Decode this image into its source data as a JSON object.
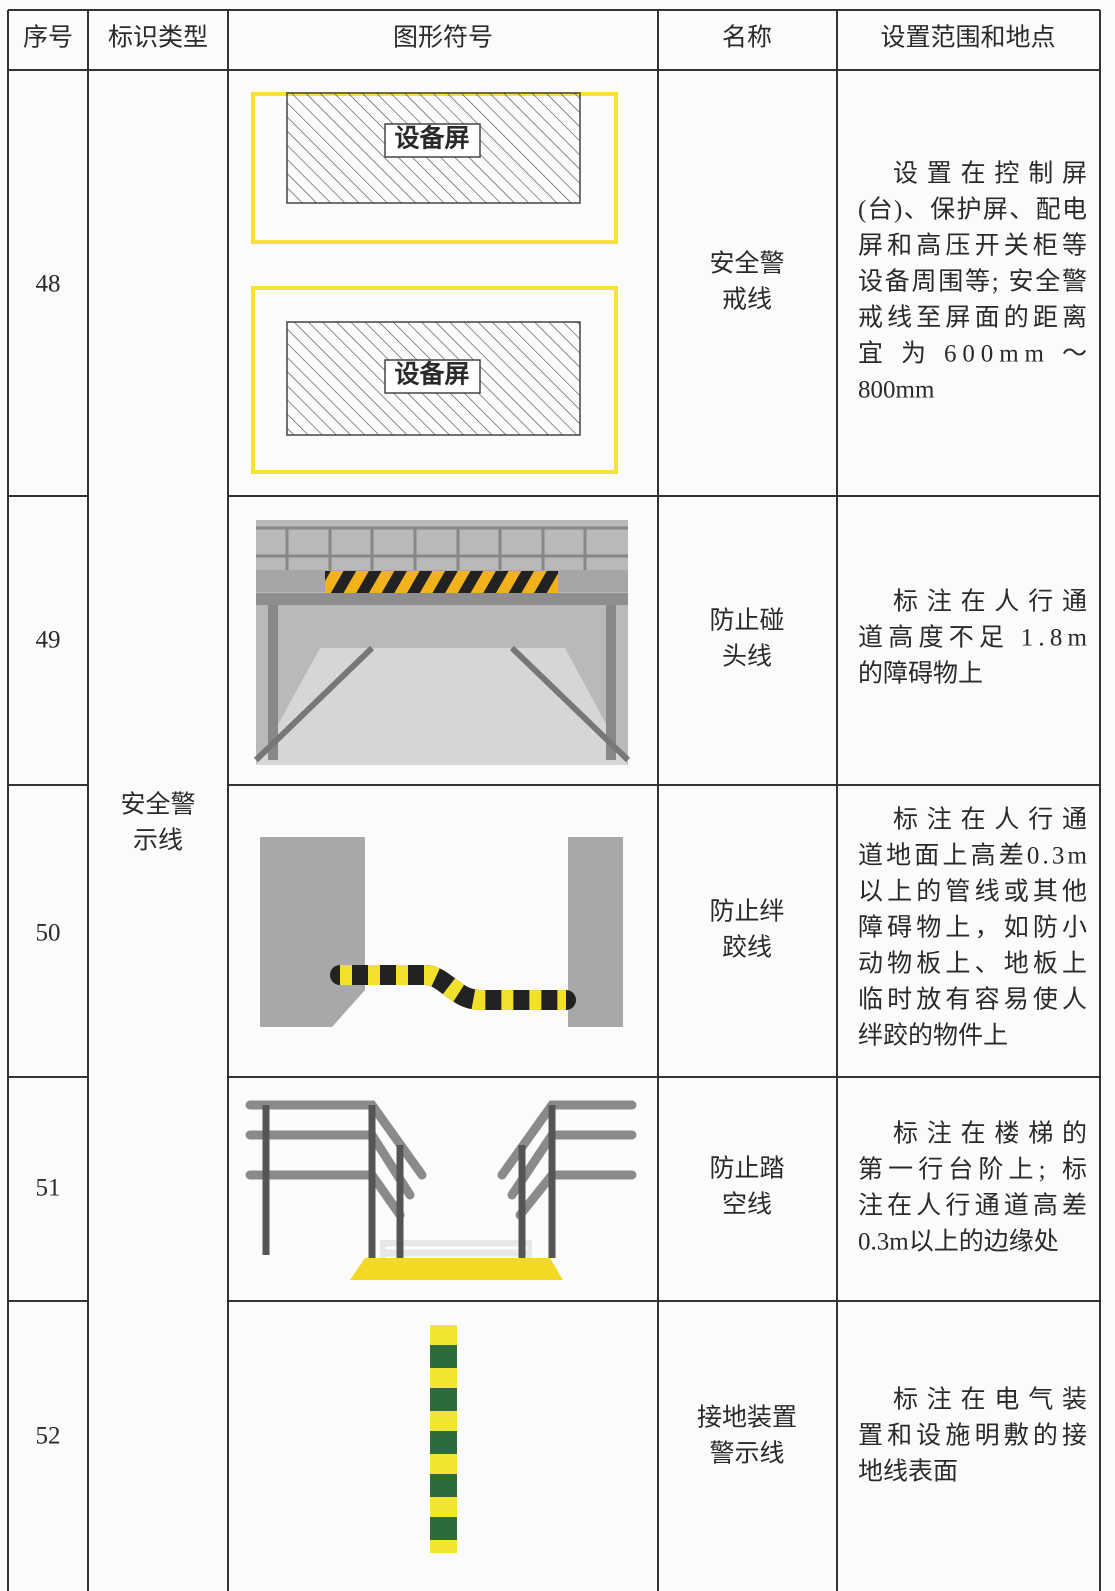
{
  "table": {
    "headers": [
      "序号",
      "标识类型",
      "图形符号",
      "名称",
      "设置范围和地点"
    ],
    "type": [
      "安全警",
      "示线"
    ],
    "rows": [
      {
        "number": "48",
        "symbol_labels": [
          "设备屏",
          "设备屏"
        ],
        "name": [
          "安全警",
          "戒线"
        ],
        "description": [
          "设置在控制屏",
          "(台)、保护屏、配电",
          "屏和高压开关柜等",
          "设备周围等; 安全警",
          "戒线至屏面的距离",
          "宜 为 600mm ～",
          "800mm"
        ]
      },
      {
        "number": "49",
        "name": [
          "防止碰",
          "头线"
        ],
        "description": [
          "标注在人行通",
          "道高度不足 1.8m",
          "的障碍物上"
        ]
      },
      {
        "number": "50",
        "name": [
          "防止绊",
          "跤线"
        ],
        "description": [
          "标注在人行通",
          "道地面上高差0.3m",
          "以上的管线或其他",
          "障碍物上，如防小",
          "动物板上、地板上",
          "临时放有容易使人",
          "绊跤的物件上"
        ]
      },
      {
        "number": "51",
        "name": [
          "防止踏",
          "空线"
        ],
        "description": [
          "标注在楼梯的",
          "第一行台阶上; 标",
          "注在人行通道高差",
          "0.3m以上的边缘处"
        ]
      },
      {
        "number": "52",
        "name": [
          "接地装置",
          "警示线"
        ],
        "description": [
          "标注在电气装",
          "置和设施明敷的接",
          "地线表面"
        ]
      }
    ]
  }
}
